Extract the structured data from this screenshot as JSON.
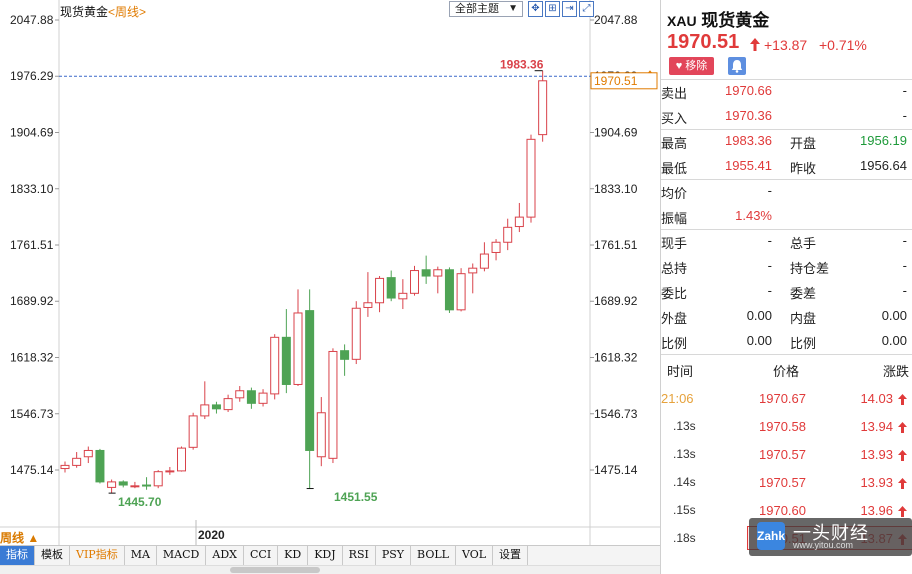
{
  "chart": {
    "instrument_label": "现货黄金",
    "period_label": "<周线>",
    "theme_button": "全部主题",
    "period_indicator": "周线",
    "year_label": "2020",
    "price_axis_ticks": [
      "2047.88",
      "1976.29",
      "1904.69",
      "1833.10",
      "1761.51",
      "1689.92",
      "1618.32",
      "1546.73",
      "1475.14"
    ],
    "current_price_tag": "1970.51",
    "reference_line_price": 1976.29,
    "annotations": {
      "high": "1983.36",
      "low1": "1445.70",
      "low2": "1451.55"
    }
  },
  "chart_data": {
    "type": "candlestick",
    "period": "weekly",
    "y_ticks": [
      2047.88,
      1976.29,
      1904.69,
      1833.1,
      1761.51,
      1689.92,
      1618.32,
      1546.73,
      1475.14
    ],
    "candles": [
      {
        "o": 1477,
        "c": 1481,
        "h": 1486,
        "l": 1472,
        "d": "up"
      },
      {
        "o": 1481,
        "c": 1490,
        "h": 1498,
        "l": 1478,
        "d": "up"
      },
      {
        "o": 1492,
        "c": 1500,
        "h": 1505,
        "l": 1484,
        "d": "up"
      },
      {
        "o": 1500,
        "c": 1460,
        "h": 1502,
        "l": 1458,
        "d": "down"
      },
      {
        "o": 1453,
        "c": 1460,
        "h": 1463,
        "l": 1445.7,
        "d": "up"
      },
      {
        "o": 1460,
        "c": 1456,
        "h": 1462,
        "l": 1453,
        "d": "down"
      },
      {
        "o": 1454,
        "c": 1455,
        "h": 1460,
        "l": 1452,
        "d": "up"
      },
      {
        "o": 1456,
        "c": 1455,
        "h": 1466,
        "l": 1450,
        "d": "down"
      },
      {
        "o": 1455,
        "c": 1473,
        "h": 1475,
        "l": 1452,
        "d": "up"
      },
      {
        "o": 1473,
        "c": 1474,
        "h": 1479,
        "l": 1469,
        "d": "up"
      },
      {
        "o": 1474,
        "c": 1503,
        "h": 1505,
        "l": 1473,
        "d": "up"
      },
      {
        "o": 1504,
        "c": 1544,
        "h": 1548,
        "l": 1501,
        "d": "up"
      },
      {
        "o": 1544,
        "c": 1558,
        "h": 1588,
        "l": 1540,
        "d": "up"
      },
      {
        "o": 1558,
        "c": 1553,
        "h": 1562,
        "l": 1547,
        "d": "down"
      },
      {
        "o": 1552,
        "c": 1566,
        "h": 1571,
        "l": 1549,
        "d": "up"
      },
      {
        "o": 1567,
        "c": 1576,
        "h": 1582,
        "l": 1562,
        "d": "up"
      },
      {
        "o": 1576,
        "c": 1560,
        "h": 1580,
        "l": 1553,
        "d": "down"
      },
      {
        "o": 1560,
        "c": 1573,
        "h": 1578,
        "l": 1556,
        "d": "up"
      },
      {
        "o": 1572,
        "c": 1644,
        "h": 1648,
        "l": 1565,
        "d": "up"
      },
      {
        "o": 1644,
        "c": 1584,
        "h": 1680,
        "l": 1573,
        "d": "down"
      },
      {
        "o": 1584,
        "c": 1675,
        "h": 1705,
        "l": 1582,
        "d": "up"
      },
      {
        "o": 1678,
        "c": 1500,
        "h": 1705,
        "l": 1451.55,
        "d": "down"
      },
      {
        "o": 1492,
        "c": 1548,
        "h": 1568,
        "l": 1480,
        "d": "up"
      },
      {
        "o": 1490,
        "c": 1626,
        "h": 1630,
        "l": 1484,
        "d": "up"
      },
      {
        "o": 1627,
        "c": 1616,
        "h": 1635,
        "l": 1595,
        "d": "down"
      },
      {
        "o": 1616,
        "c": 1681,
        "h": 1690,
        "l": 1610,
        "d": "up"
      },
      {
        "o": 1682,
        "c": 1688,
        "h": 1727,
        "l": 1670,
        "d": "up"
      },
      {
        "o": 1688,
        "c": 1719,
        "h": 1722,
        "l": 1676,
        "d": "up"
      },
      {
        "o": 1720,
        "c": 1694,
        "h": 1729,
        "l": 1690,
        "d": "down"
      },
      {
        "o": 1693,
        "c": 1700,
        "h": 1718,
        "l": 1680,
        "d": "up"
      },
      {
        "o": 1700,
        "c": 1729,
        "h": 1735,
        "l": 1697,
        "d": "up"
      },
      {
        "o": 1730,
        "c": 1722,
        "h": 1748,
        "l": 1712,
        "d": "down"
      },
      {
        "o": 1722,
        "c": 1730,
        "h": 1734,
        "l": 1700,
        "d": "up"
      },
      {
        "o": 1730,
        "c": 1679,
        "h": 1733,
        "l": 1675,
        "d": "down"
      },
      {
        "o": 1679,
        "c": 1725,
        "h": 1732,
        "l": 1677,
        "d": "up"
      },
      {
        "o": 1726,
        "c": 1732,
        "h": 1738,
        "l": 1700,
        "d": "up"
      },
      {
        "o": 1732,
        "c": 1750,
        "h": 1765,
        "l": 1728,
        "d": "up"
      },
      {
        "o": 1752,
        "c": 1765,
        "h": 1769,
        "l": 1742,
        "d": "up"
      },
      {
        "o": 1765,
        "c": 1784,
        "h": 1795,
        "l": 1755,
        "d": "up"
      },
      {
        "o": 1785,
        "c": 1797,
        "h": 1815,
        "l": 1778,
        "d": "up"
      },
      {
        "o": 1797,
        "c": 1896,
        "h": 1902,
        "l": 1790,
        "d": "up"
      },
      {
        "o": 1902,
        "c": 1970.51,
        "h": 1983.36,
        "l": 1893,
        "d": "up"
      }
    ]
  },
  "quote": {
    "code": "XAU",
    "name": "现货黄金",
    "price": "1970.51",
    "change": "+13.87",
    "change_pct": "+0.71%",
    "remove_label": "移除",
    "rows": [
      {
        "l1": "卖出",
        "v1": "1970.66",
        "l2": "",
        "v2": "-"
      },
      {
        "l1": "买入",
        "v1": "1970.36",
        "l2": "",
        "v2": "-"
      },
      {
        "l1": "最高",
        "v1": "1983.36",
        "l2": "开盘",
        "v2": "1956.19"
      },
      {
        "l1": "最低",
        "v1": "1955.41",
        "l2": "昨收",
        "v2": "1956.64"
      },
      {
        "l1": "均价",
        "v1": "-",
        "l2": "",
        "v2": ""
      },
      {
        "l1": "振幅",
        "v1": "1.43%",
        "l2": "",
        "v2": ""
      },
      {
        "l1": "现手",
        "v1": "-",
        "l2": "总手",
        "v2": "-"
      },
      {
        "l1": "总持",
        "v1": "-",
        "l2": "持仓差",
        "v2": "-"
      },
      {
        "l1": "委比",
        "v1": "-",
        "l2": "委差",
        "v2": "-"
      },
      {
        "l1": "外盘",
        "v1": "0.00",
        "l2": "内盘",
        "v2": "0.00"
      },
      {
        "l1": "比例",
        "v1": "0.00",
        "l2": "比例",
        "v2": "0.00"
      }
    ],
    "trades_header": {
      "time": "时间",
      "price": "价格",
      "change": "涨跌"
    },
    "trades": [
      {
        "time": "21:06",
        "price": "1970.67",
        "change": "14.03"
      },
      {
        "time": ".13s",
        "price": "1970.58",
        "change": "13.94"
      },
      {
        "time": ".13s",
        "price": "1970.57",
        "change": "13.93"
      },
      {
        "time": ".14s",
        "price": "1970.57",
        "change": "13.93"
      },
      {
        "time": ".15s",
        "price": "1970.60",
        "change": "13.96"
      },
      {
        "time": ".18s",
        "price": "1970.51",
        "change": "13.87"
      }
    ]
  },
  "tabs": [
    "指标",
    "模板",
    "VIP指标",
    "MA",
    "MACD",
    "ADX",
    "CCI",
    "KD",
    "KDJ",
    "RSI",
    "PSY",
    "BOLL",
    "VOL",
    "设置"
  ],
  "watermark": {
    "logo": "Zahk",
    "text": "一头财经",
    "sub": "www.yitou.com"
  },
  "colors": {
    "up": "#d9424a",
    "down": "#4ea354",
    "accent": "#e07b00",
    "ref_line": "#3a68c9"
  }
}
